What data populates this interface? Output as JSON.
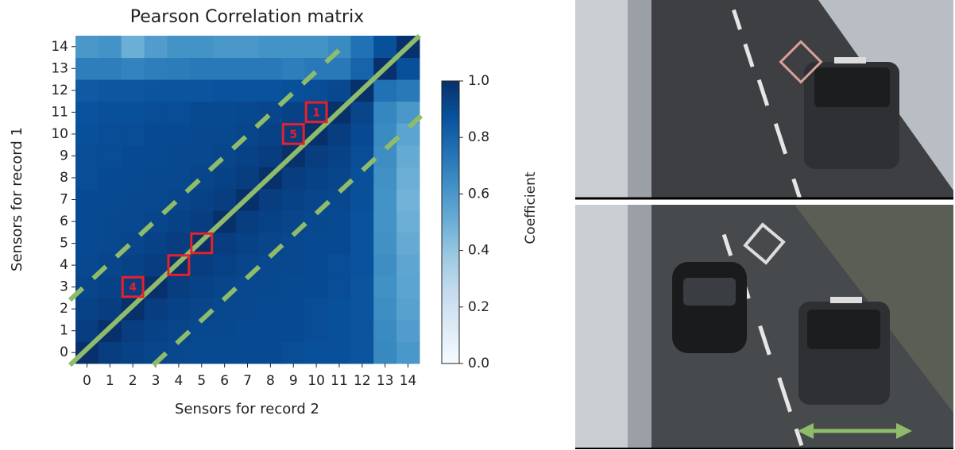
{
  "chart_data": {
    "type": "heatmap",
    "title": "Pearson Correlation matrix",
    "x_label": "Sensors for record 2",
    "y_label": "Sensors for record 1",
    "colorbar_label": "Coefficient",
    "x_categories": [
      "0",
      "1",
      "2",
      "3",
      "4",
      "5",
      "6",
      "7",
      "8",
      "9",
      "10",
      "11",
      "12",
      "13",
      "14"
    ],
    "y_categories": [
      "0",
      "1",
      "2",
      "3",
      "4",
      "5",
      "6",
      "7",
      "8",
      "9",
      "10",
      "11",
      "12",
      "13",
      "14"
    ],
    "values": [
      [
        1.0,
        0.95,
        0.93,
        0.92,
        0.91,
        0.9,
        0.9,
        0.9,
        0.9,
        0.89,
        0.88,
        0.88,
        0.86,
        0.66,
        0.6
      ],
      [
        0.95,
        1.0,
        0.95,
        0.93,
        0.92,
        0.91,
        0.91,
        0.9,
        0.9,
        0.9,
        0.89,
        0.88,
        0.86,
        0.65,
        0.58
      ],
      [
        0.93,
        0.95,
        1.0,
        0.95,
        0.93,
        0.92,
        0.91,
        0.91,
        0.9,
        0.9,
        0.89,
        0.88,
        0.86,
        0.64,
        0.56
      ],
      [
        0.92,
        0.93,
        0.95,
        1.0,
        0.95,
        0.93,
        0.92,
        0.91,
        0.91,
        0.9,
        0.9,
        0.89,
        0.86,
        0.63,
        0.55
      ],
      [
        0.91,
        0.92,
        0.93,
        0.95,
        1.0,
        0.95,
        0.93,
        0.92,
        0.91,
        0.91,
        0.9,
        0.89,
        0.87,
        0.64,
        0.54
      ],
      [
        0.9,
        0.91,
        0.92,
        0.93,
        0.95,
        1.0,
        0.95,
        0.93,
        0.92,
        0.91,
        0.9,
        0.9,
        0.87,
        0.63,
        0.52
      ],
      [
        0.9,
        0.91,
        0.91,
        0.92,
        0.93,
        0.95,
        1.0,
        0.95,
        0.93,
        0.92,
        0.91,
        0.9,
        0.87,
        0.62,
        0.5
      ],
      [
        0.9,
        0.9,
        0.91,
        0.91,
        0.92,
        0.93,
        0.95,
        1.0,
        0.95,
        0.93,
        0.92,
        0.91,
        0.88,
        0.62,
        0.48
      ],
      [
        0.89,
        0.9,
        0.9,
        0.91,
        0.91,
        0.92,
        0.93,
        0.95,
        1.0,
        0.95,
        0.93,
        0.92,
        0.88,
        0.63,
        0.5
      ],
      [
        0.89,
        0.89,
        0.9,
        0.9,
        0.91,
        0.91,
        0.92,
        0.93,
        0.95,
        1.0,
        0.95,
        0.93,
        0.89,
        0.64,
        0.52
      ],
      [
        0.88,
        0.89,
        0.89,
        0.9,
        0.9,
        0.91,
        0.91,
        0.92,
        0.93,
        0.95,
        1.0,
        0.95,
        0.9,
        0.65,
        0.55
      ],
      [
        0.87,
        0.88,
        0.88,
        0.89,
        0.89,
        0.9,
        0.9,
        0.91,
        0.92,
        0.93,
        0.95,
        1.0,
        0.92,
        0.67,
        0.6
      ],
      [
        0.84,
        0.85,
        0.85,
        0.86,
        0.86,
        0.86,
        0.87,
        0.87,
        0.87,
        0.88,
        0.89,
        0.91,
        1.0,
        0.75,
        0.72
      ],
      [
        0.7,
        0.7,
        0.68,
        0.7,
        0.71,
        0.72,
        0.72,
        0.72,
        0.72,
        0.7,
        0.72,
        0.72,
        0.8,
        1.0,
        0.88
      ],
      [
        0.6,
        0.62,
        0.5,
        0.58,
        0.62,
        0.62,
        0.6,
        0.6,
        0.62,
        0.62,
        0.62,
        0.65,
        0.75,
        0.88,
        1.0
      ]
    ],
    "clim": [
      0,
      1
    ],
    "colorbar_ticks": [
      {
        "value": 0,
        "label": "0.0"
      },
      {
        "value": 0.2,
        "label": "0.2"
      },
      {
        "value": 0.4,
        "label": "0.4"
      },
      {
        "value": 0.6,
        "label": "0.6"
      },
      {
        "value": 0.8,
        "label": "0.8"
      },
      {
        "value": 1,
        "label": "1.0"
      }
    ],
    "colorscale": [
      "#f7fbff",
      "#deebf7",
      "#c6dbef",
      "#9ecae1",
      "#6baed6",
      "#4292c6",
      "#2171b5",
      "#08519c",
      "#08306b"
    ],
    "highlight_color": "#e8202a",
    "annotations": [
      {
        "label": "1",
        "x": 10,
        "y": 11
      },
      {
        "label": "5",
        "x": 9,
        "y": 10
      },
      {
        "label": "4",
        "x": 2,
        "y": 3
      }
    ],
    "highlight_cells": [
      {
        "x": 4,
        "y": 4
      },
      {
        "x": 5,
        "y": 5
      }
    ]
  }
}
